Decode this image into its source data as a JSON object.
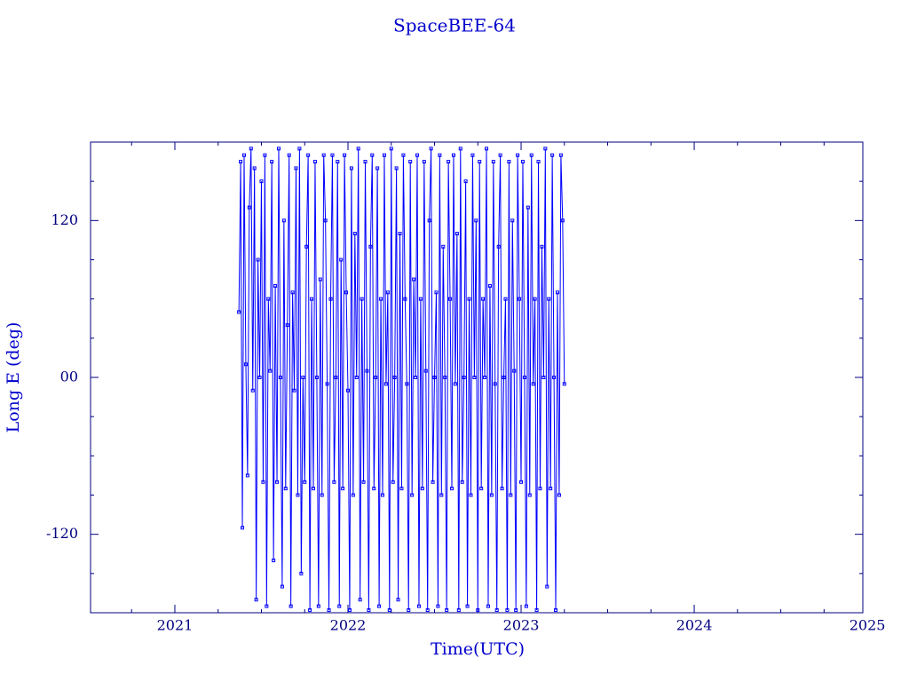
{
  "chart_data": {
    "type": "line",
    "title": "SpaceBEE-64",
    "xlabel": "Time(UTC)",
    "ylabel": "Long E (deg)",
    "color": "#0000ff",
    "axis_color": "#000080",
    "xlim": [
      2020.513,
      2024.974
    ],
    "ylim": [
      -180,
      180
    ],
    "xticks": [
      2021,
      2022,
      2023,
      2024,
      2025
    ],
    "xminorticks": [
      2020.75,
      2021.25,
      2021.5,
      2021.75,
      2022.25,
      2022.5,
      2022.75,
      2023.25,
      2023.5,
      2023.75,
      2024.25,
      2024.5,
      2024.75
    ],
    "yticks": [
      -120,
      {
        "value": 0,
        "label": "00"
      },
      120
    ],
    "yminorticks": [
      -150,
      -90,
      -60,
      -30,
      30,
      60,
      90,
      150
    ],
    "x": [
      2021.37,
      2021.38,
      2021.39,
      2021.4,
      2021.41,
      2021.42,
      2021.43,
      2021.44,
      2021.45,
      2021.46,
      2021.47,
      2021.48,
      2021.49,
      2021.5,
      2021.51,
      2021.52,
      2021.53,
      2021.54,
      2021.55,
      2021.56,
      2021.57,
      2021.58,
      2021.59,
      2021.6,
      2021.61,
      2021.62,
      2021.63,
      2021.64,
      2021.65,
      2021.66,
      2021.67,
      2021.68,
      2021.69,
      2021.7,
      2021.71,
      2021.72,
      2021.73,
      2021.74,
      2021.75,
      2021.76,
      2021.77,
      2021.78,
      2021.79,
      2021.8,
      2021.81,
      2021.82,
      2021.83,
      2021.84,
      2021.85,
      2021.86,
      2021.87,
      2021.88,
      2021.89,
      2021.9,
      2021.91,
      2021.92,
      2021.93,
      2021.94,
      2021.95,
      2021.96,
      2021.97,
      2021.98,
      2021.99,
      2022.0,
      2022.01,
      2022.02,
      2022.03,
      2022.04,
      2022.05,
      2022.06,
      2022.07,
      2022.08,
      2022.09,
      2022.1,
      2022.11,
      2022.12,
      2022.13,
      2022.14,
      2022.15,
      2022.16,
      2022.17,
      2022.18,
      2022.19,
      2022.2,
      2022.21,
      2022.22,
      2022.23,
      2022.24,
      2022.25,
      2022.26,
      2022.27,
      2022.28,
      2022.29,
      2022.3,
      2022.31,
      2022.32,
      2022.33,
      2022.34,
      2022.35,
      2022.36,
      2022.37,
      2022.38,
      2022.39,
      2022.4,
      2022.41,
      2022.42,
      2022.43,
      2022.44,
      2022.45,
      2022.46,
      2022.47,
      2022.48,
      2022.49,
      2022.5,
      2022.51,
      2022.52,
      2022.53,
      2022.54,
      2022.55,
      2022.56,
      2022.57,
      2022.58,
      2022.59,
      2022.6,
      2022.61,
      2022.62,
      2022.63,
      2022.64,
      2022.65,
      2022.66,
      2022.67,
      2022.68,
      2022.69,
      2022.7,
      2022.71,
      2022.72,
      2022.73,
      2022.74,
      2022.75,
      2022.76,
      2022.77,
      2022.78,
      2022.79,
      2022.8,
      2022.81,
      2022.82,
      2022.83,
      2022.84,
      2022.85,
      2022.86,
      2022.87,
      2022.88,
      2022.89,
      2022.9,
      2022.91,
      2022.92,
      2022.93,
      2022.94,
      2022.95,
      2022.96,
      2022.97,
      2022.98,
      2022.99,
      2023.0,
      2023.01,
      2023.02,
      2023.03,
      2023.04,
      2023.05,
      2023.06,
      2023.07,
      2023.08,
      2023.09,
      2023.1,
      2023.11,
      2023.12,
      2023.13,
      2023.14,
      2023.15,
      2023.16,
      2023.17,
      2023.18,
      2023.19,
      2023.2,
      2023.21,
      2023.22,
      2023.23,
      2023.24,
      2023.25
    ],
    "values": [
      50,
      165,
      -115,
      170,
      10,
      -75,
      130,
      175,
      -10,
      160,
      -170,
      90,
      0,
      150,
      -80,
      170,
      -175,
      60,
      5,
      165,
      -140,
      70,
      -80,
      175,
      0,
      -160,
      120,
      -85,
      40,
      170,
      -175,
      65,
      -10,
      160,
      -90,
      175,
      -150,
      0,
      -80,
      100,
      170,
      -178,
      60,
      -85,
      165,
      0,
      -175,
      75,
      -90,
      170,
      120,
      -5,
      -178,
      60,
      170,
      -80,
      0,
      165,
      -175,
      90,
      -85,
      170,
      65,
      -10,
      -178,
      160,
      -90,
      110,
      0,
      175,
      -170,
      60,
      -80,
      165,
      5,
      -178,
      100,
      170,
      -85,
      0,
      160,
      -175,
      60,
      -90,
      170,
      -5,
      65,
      -178,
      175,
      -80,
      0,
      160,
      -170,
      110,
      -85,
      170,
      60,
      -5,
      -178,
      165,
      -90,
      75,
      0,
      170,
      -175,
      60,
      -85,
      165,
      5,
      -178,
      120,
      175,
      -80,
      0,
      65,
      -175,
      170,
      -90,
      100,
      0,
      -178,
      165,
      60,
      -85,
      170,
      -5,
      110,
      -178,
      175,
      -80,
      0,
      150,
      -175,
      60,
      -90,
      170,
      0,
      120,
      -178,
      165,
      -85,
      60,
      0,
      175,
      -175,
      70,
      -90,
      165,
      -5,
      -178,
      100,
      170,
      -85,
      0,
      60,
      -178,
      165,
      -90,
      120,
      5,
      -178,
      170,
      60,
      -80,
      165,
      0,
      -175,
      130,
      -90,
      170,
      -5,
      60,
      -178,
      165,
      -85,
      100,
      0,
      175,
      -160,
      60,
      -85,
      170,
      0,
      -178,
      65,
      -90,
      170,
      120,
      -5
    ]
  }
}
